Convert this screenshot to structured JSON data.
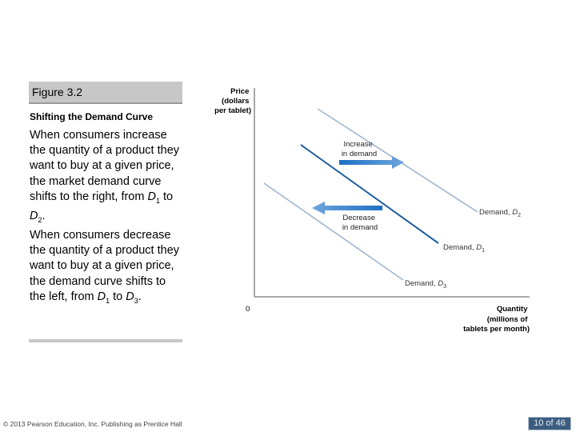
{
  "figure": {
    "label": "Figure 3.2",
    "subtitle": "Shifting the Demand Curve",
    "description_1": {
      "text": "When consumers increase the quantity of a product they want to buy at a given price, the market demand curve shifts to the right, from ",
      "from_var": "D",
      "from_sub": "1",
      "middle": " to ",
      "to_var": "D",
      "to_sub": "2",
      "end": "."
    },
    "description_2": {
      "text": "When consumers decrease the quantity of a product they want to buy at a given price, the demand curve shifts to the left, from ",
      "from_var": "D",
      "from_sub": "1",
      "middle": " to ",
      "to_var": "D",
      "to_sub": "3",
      "end": "."
    }
  },
  "chart_data": {
    "type": "line",
    "ylabel": [
      "Price",
      "(dollars",
      "per tablet)"
    ],
    "xlabel": [
      "Quantity",
      "(millions of",
      "tablets per month)"
    ],
    "origin_label": "0",
    "series": [
      {
        "name": "Demand, ",
        "sub": "2",
        "color": "#9fb6cf"
      },
      {
        "name": "Demand, ",
        "sub": "1",
        "color": "#1f5f9e"
      },
      {
        "name": "Demand, ",
        "sub": "3",
        "color": "#9fb6cf"
      }
    ],
    "annotations": [
      {
        "lines": [
          "Increase",
          "in demand"
        ],
        "direction": "right",
        "color": "#2f7bc8"
      },
      {
        "lines": [
          "Decrease",
          "in demand"
        ],
        "direction": "left",
        "color": "#2f7bc8"
      }
    ],
    "grid": false
  },
  "footer": {
    "copyright": "© 2013 Pearson Education, Inc. Publishing as Prentice Hall",
    "page": "10 of 46"
  }
}
